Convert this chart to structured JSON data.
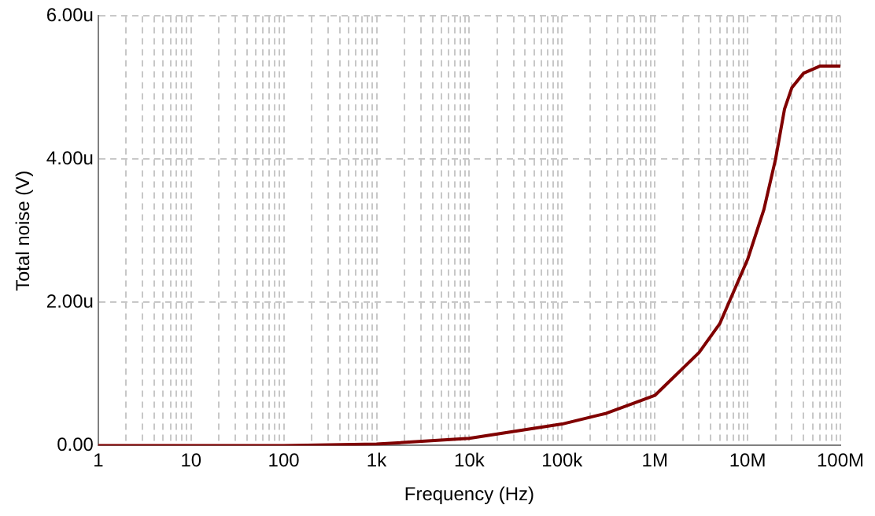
{
  "chart_data": {
    "type": "line",
    "xlabel": "Frequency (Hz)",
    "ylabel": "Total noise (V)",
    "log": "x",
    "grid": true,
    "legend": false,
    "marker": "none",
    "line_style": "solid",
    "xlim": [
      1,
      100000000
    ],
    "ylim": [
      0,
      6
    ],
    "xticks": [
      1,
      {
        "value": 2,
        "label": null
      },
      {
        "value": 3,
        "label": null
      },
      {
        "value": 4,
        "label": null
      },
      {
        "value": 5,
        "label": null
      },
      {
        "value": 6,
        "label": null
      },
      {
        "value": 7,
        "label": null
      },
      {
        "value": 8,
        "label": null
      },
      {
        "value": 9,
        "label": null
      },
      10,
      {
        "value": 20,
        "label": null
      },
      {
        "value": 30,
        "label": null
      },
      {
        "value": 40,
        "label": null
      },
      {
        "value": 50,
        "label": null
      },
      {
        "value": 60,
        "label": null
      },
      {
        "value": 70,
        "label": null
      },
      {
        "value": 80,
        "label": null
      },
      {
        "value": 90,
        "label": null
      },
      100,
      {
        "value": 200,
        "label": null
      },
      {
        "value": 300,
        "label": null
      },
      {
        "value": 400,
        "label": null
      },
      {
        "value": 500,
        "label": null
      },
      {
        "value": 600,
        "label": null
      },
      {
        "value": 700,
        "label": null
      },
      {
        "value": 800,
        "label": null
      },
      {
        "value": 900,
        "label": null
      },
      {
        "value": 1000,
        "label": "1k"
      },
      {
        "value": 2000,
        "label": null
      },
      {
        "value": 3000,
        "label": null
      },
      {
        "value": 4000,
        "label": null
      },
      {
        "value": 5000,
        "label": null
      },
      {
        "value": 6000,
        "label": null
      },
      {
        "value": 7000,
        "label": null
      },
      {
        "value": 8000,
        "label": null
      },
      {
        "value": 9000,
        "label": null
      },
      {
        "value": 10000,
        "label": "10k"
      },
      {
        "value": 20000,
        "label": null
      },
      {
        "value": 30000,
        "label": null
      },
      {
        "value": 40000,
        "label": null
      },
      {
        "value": 50000,
        "label": null
      },
      {
        "value": 60000,
        "label": null
      },
      {
        "value": 70000,
        "label": null
      },
      {
        "value": 80000,
        "label": null
      },
      {
        "value": 90000,
        "label": null
      },
      {
        "value": 100000,
        "label": "100k"
      },
      {
        "value": 200000,
        "label": null
      },
      {
        "value": 300000,
        "label": null
      },
      {
        "value": 400000,
        "label": null
      },
      {
        "value": 500000,
        "label": null
      },
      {
        "value": 600000,
        "label": null
      },
      {
        "value": 700000,
        "label": null
      },
      {
        "value": 800000,
        "label": null
      },
      {
        "value": 900000,
        "label": null
      },
      {
        "value": 1000000,
        "label": "1M"
      },
      {
        "value": 2000000,
        "label": null
      },
      {
        "value": 3000000,
        "label": null
      },
      {
        "value": 4000000,
        "label": null
      },
      {
        "value": 5000000,
        "label": null
      },
      {
        "value": 6000000,
        "label": null
      },
      {
        "value": 7000000,
        "label": null
      },
      {
        "value": 8000000,
        "label": null
      },
      {
        "value": 9000000,
        "label": null
      },
      {
        "value": 10000000,
        "label": "10M"
      },
      {
        "value": 20000000,
        "label": null
      },
      {
        "value": 30000000,
        "label": null
      },
      {
        "value": 40000000,
        "label": null
      },
      {
        "value": 50000000,
        "label": null
      },
      {
        "value": 60000000,
        "label": null
      },
      {
        "value": 70000000,
        "label": null
      },
      {
        "value": 80000000,
        "label": null
      },
      {
        "value": 90000000,
        "label": null
      },
      {
        "value": 100000000,
        "label": "100M"
      }
    ],
    "yticks": [
      {
        "value": 0,
        "label": "0.00"
      },
      {
        "value": 2,
        "label": "2.00u"
      },
      {
        "value": 4,
        "label": "4.00u"
      },
      {
        "value": 6,
        "label": "6.00u"
      }
    ],
    "x": [
      1,
      10,
      100,
      1000,
      10000,
      100000,
      300000,
      1000000,
      3000000,
      5000000,
      10000000,
      15000000,
      20000000,
      25000000,
      30000000,
      40000000,
      60000000,
      100000000
    ],
    "series": [
      {
        "color": "#800000",
        "values": [
          0,
          0,
          0,
          0.02,
          0.1,
          0.3,
          0.45,
          0.7,
          1.3,
          1.7,
          2.6,
          3.3,
          4,
          4.7,
          5,
          5.2,
          5.3,
          5.3
        ]
      }
    ]
  }
}
